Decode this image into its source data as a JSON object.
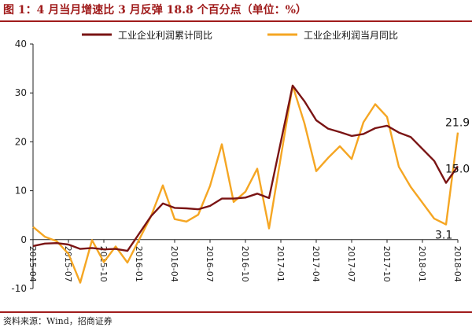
{
  "header": {
    "title": "图 1：4 月当月增速比 3 月反弹 18.8 个百分点（单位：%）"
  },
  "footer": {
    "source": "资料来源：Wind，招商证券"
  },
  "colors": {
    "accent": "#a01c1c",
    "cumulative": "#7a1414",
    "monthly": "#f5a623"
  },
  "chart_data": {
    "type": "line",
    "title": "图 1：4 月当月增速比 3 月反弹 18.8 个百分点（单位：%）",
    "xlabel": "",
    "ylabel": "",
    "ylim": [
      -10,
      40
    ],
    "yticks": [
      -10,
      0,
      10,
      20,
      30,
      40
    ],
    "grid": false,
    "legend": "top",
    "x": [
      "2015-04",
      "2015-05",
      "2015-06",
      "2015-07",
      "2015-08",
      "2015-09",
      "2015-10",
      "2015-11",
      "2015-12",
      "2016-01",
      "2016-02",
      "2016-03",
      "2016-04",
      "2016-05",
      "2016-06",
      "2016-07",
      "2016-08",
      "2016-09",
      "2016-10",
      "2016-11",
      "2016-12",
      "2017-01",
      "2017-02",
      "2017-03",
      "2017-04",
      "2017-05",
      "2017-06",
      "2017-07",
      "2017-08",
      "2017-09",
      "2017-10",
      "2017-11",
      "2017-12",
      "2018-01",
      "2018-02",
      "2018-03",
      "2018-04"
    ],
    "xticks": [
      "2015-04",
      "2015-07",
      "2015-10",
      "2016-01",
      "2016-04",
      "2016-07",
      "2016-10",
      "2017-01",
      "2017-04",
      "2017-07",
      "2017-10",
      "2018-01",
      "2018-04"
    ],
    "series": [
      {
        "name": "工业企业利润累计同比",
        "color": "#7a1414",
        "values": [
          -1.3,
          -0.8,
          -0.7,
          -1.0,
          -1.9,
          -1.7,
          -2.0,
          -1.9,
          -2.3,
          null,
          4.8,
          7.4,
          6.5,
          6.4,
          6.2,
          6.9,
          8.4,
          8.4,
          8.6,
          9.4,
          8.5,
          null,
          31.5,
          28.3,
          24.4,
          22.7,
          22.0,
          21.2,
          21.6,
          22.8,
          23.3,
          21.9,
          21.0,
          null,
          16.1,
          11.6,
          15.0
        ]
      },
      {
        "name": "工业企业利润当月同比",
        "color": "#f5a623",
        "values": [
          2.6,
          0.6,
          -0.3,
          -2.9,
          -8.8,
          -0.1,
          -4.6,
          -1.4,
          -4.7,
          null,
          4.8,
          11.1,
          4.2,
          3.7,
          5.1,
          11.0,
          19.5,
          7.7,
          9.8,
          14.5,
          2.3,
          null,
          31.5,
          23.8,
          14.0,
          16.7,
          19.1,
          16.5,
          24.0,
          27.7,
          25.1,
          14.9,
          10.8,
          null,
          4.3,
          3.1,
          21.9
        ]
      }
    ],
    "annotations": [
      {
        "text": "21.9",
        "x": "2018-04",
        "y": 21.9
      },
      {
        "text": "15.0",
        "x": "2018-04",
        "y": 15.0
      },
      {
        "text": "3.1",
        "x": "2018-03",
        "y": 3.1
      }
    ]
  }
}
